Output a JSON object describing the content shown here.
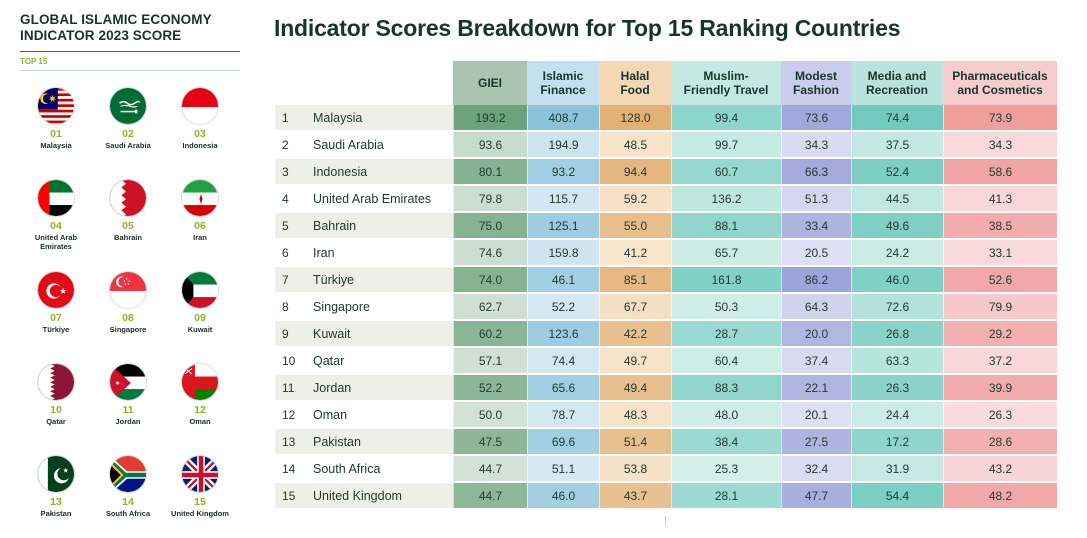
{
  "left_panel": {
    "title_line1": "GLOBAL ISLAMIC ECONOMY",
    "title_line2": "INDICATOR 2023 SCORE",
    "subtitle": "TOP 15",
    "countries": [
      {
        "rank": "01",
        "name_lines": [
          "Malaysia"
        ],
        "flag_icon": "malaysia-flag-icon"
      },
      {
        "rank": "02",
        "name_lines": [
          "Saudi Arabia"
        ],
        "flag_icon": "saudi-arabia-flag-icon"
      },
      {
        "rank": "03",
        "name_lines": [
          "Indonesia"
        ],
        "flag_icon": "indonesia-flag-icon"
      },
      {
        "rank": "04",
        "name_lines": [
          "United Arab",
          "Emirates"
        ],
        "flag_icon": "uae-flag-icon"
      },
      {
        "rank": "05",
        "name_lines": [
          "Bahrain"
        ],
        "flag_icon": "bahrain-flag-icon"
      },
      {
        "rank": "06",
        "name_lines": [
          "Iran"
        ],
        "flag_icon": "iran-flag-icon"
      },
      {
        "rank": "07",
        "name_lines": [
          "Türkiye"
        ],
        "flag_icon": "turkiye-flag-icon"
      },
      {
        "rank": "08",
        "name_lines": [
          "Singapore"
        ],
        "flag_icon": "singapore-flag-icon"
      },
      {
        "rank": "09",
        "name_lines": [
          "Kuwait"
        ],
        "flag_icon": "kuwait-flag-icon"
      },
      {
        "rank": "10",
        "name_lines": [
          "Qatar"
        ],
        "flag_icon": "qatar-flag-icon"
      },
      {
        "rank": "11",
        "name_lines": [
          "Jordan"
        ],
        "flag_icon": "jordan-flag-icon"
      },
      {
        "rank": "12",
        "name_lines": [
          "Oman"
        ],
        "flag_icon": "oman-flag-icon"
      },
      {
        "rank": "13",
        "name_lines": [
          "Pakistan"
        ],
        "flag_icon": "pakistan-flag-icon"
      },
      {
        "rank": "14",
        "name_lines": [
          "South Africa"
        ],
        "flag_icon": "south-africa-flag-icon"
      },
      {
        "rank": "15",
        "name_lines": [
          "United Kingdom"
        ],
        "flag_icon": "united-kingdom-flag-icon"
      }
    ]
  },
  "chart_data": {
    "type": "table",
    "title": "Indicator Scores Breakdown for Top 15 Ranking Countries",
    "columns": [
      {
        "key": "giei",
        "label_lines": [
          "GIEI"
        ],
        "header_color": "#a9c4ae",
        "light_color": "#eaf1ea",
        "dark_color": "#69a079"
      },
      {
        "key": "islamic_finance",
        "label_lines": [
          "Islamic",
          "Finance"
        ],
        "header_color": "#c6dfee",
        "light_color": "#e7f2f8",
        "dark_color": "#89c2db"
      },
      {
        "key": "halal_food",
        "label_lines": [
          "Halal",
          "Food"
        ],
        "header_color": "#f3d8b5",
        "light_color": "#fcf0e0",
        "dark_color": "#e2ae72"
      },
      {
        "key": "muslim_friendly_travel",
        "label_lines": [
          "Muslim-",
          "Friendly Travel"
        ],
        "header_color": "#c4e8e3",
        "light_color": "#e7f6f3",
        "dark_color": "#7fd0c5"
      },
      {
        "key": "modest_fashion",
        "label_lines": [
          "Modest",
          "Fashion"
        ],
        "header_color": "#c9cceb",
        "light_color": "#ecedf8",
        "dark_color": "#9ba2d9"
      },
      {
        "key": "media_recreation",
        "label_lines": [
          "Media and",
          "Recreation"
        ],
        "header_color": "#b9e3de",
        "light_color": "#e3f4f1",
        "dark_color": "#6fc9bd"
      },
      {
        "key": "pharma_cosmetics",
        "label_lines": [
          "Pharmaceuticals",
          "and Cosmetics"
        ],
        "header_color": "#f6cccc",
        "light_color": "#fcebeb",
        "dark_color": "#ef9a9a"
      }
    ],
    "rows": [
      {
        "rank": "1",
        "country": "Malaysia",
        "values": [
          193.2,
          408.7,
          128.0,
          99.4,
          73.6,
          74.4,
          73.9
        ]
      },
      {
        "rank": "2",
        "country": "Saudi Arabia",
        "values": [
          93.6,
          194.9,
          48.5,
          99.7,
          34.3,
          37.5,
          34.3
        ]
      },
      {
        "rank": "3",
        "country": "Indonesia",
        "values": [
          80.1,
          93.2,
          94.4,
          60.7,
          66.3,
          52.4,
          58.6
        ]
      },
      {
        "rank": "4",
        "country": "United Arab Emirates",
        "values": [
          79.8,
          115.7,
          59.2,
          136.2,
          51.3,
          44.5,
          41.3
        ]
      },
      {
        "rank": "5",
        "country": "Bahrain",
        "values": [
          75.0,
          125.1,
          55.0,
          88.1,
          33.4,
          49.6,
          38.5
        ]
      },
      {
        "rank": "6",
        "country": "Iran",
        "values": [
          74.6,
          159.8,
          41.2,
          65.7,
          20.5,
          24.2,
          33.1
        ]
      },
      {
        "rank": "7",
        "country": "Türkiye",
        "values": [
          74.0,
          46.1,
          85.1,
          161.8,
          86.2,
          46.0,
          52.6
        ]
      },
      {
        "rank": "8",
        "country": "Singapore",
        "values": [
          62.7,
          52.2,
          67.7,
          50.3,
          64.3,
          72.6,
          79.9
        ]
      },
      {
        "rank": "9",
        "country": "Kuwait",
        "values": [
          60.2,
          123.6,
          42.2,
          28.7,
          20.0,
          26.8,
          29.2
        ]
      },
      {
        "rank": "10",
        "country": "Qatar",
        "values": [
          57.1,
          74.4,
          49.7,
          60.4,
          37.4,
          63.3,
          37.2
        ]
      },
      {
        "rank": "11",
        "country": "Jordan",
        "values": [
          52.2,
          65.6,
          49.4,
          88.3,
          22.1,
          26.3,
          39.9
        ]
      },
      {
        "rank": "12",
        "country": "Oman",
        "values": [
          50.0,
          78.7,
          48.3,
          48.0,
          20.1,
          24.4,
          26.3
        ]
      },
      {
        "rank": "13",
        "country": "Pakistan",
        "values": [
          47.5,
          69.6,
          51.4,
          38.4,
          27.5,
          17.2,
          28.6
        ]
      },
      {
        "rank": "14",
        "country": "South Africa",
        "values": [
          44.7,
          51.1,
          53.8,
          25.3,
          32.4,
          31.9,
          43.2
        ]
      },
      {
        "rank": "15",
        "country": "United Kingdom",
        "values": [
          44.7,
          46.0,
          43.7,
          28.1,
          47.7,
          54.4,
          48.2
        ]
      }
    ]
  }
}
